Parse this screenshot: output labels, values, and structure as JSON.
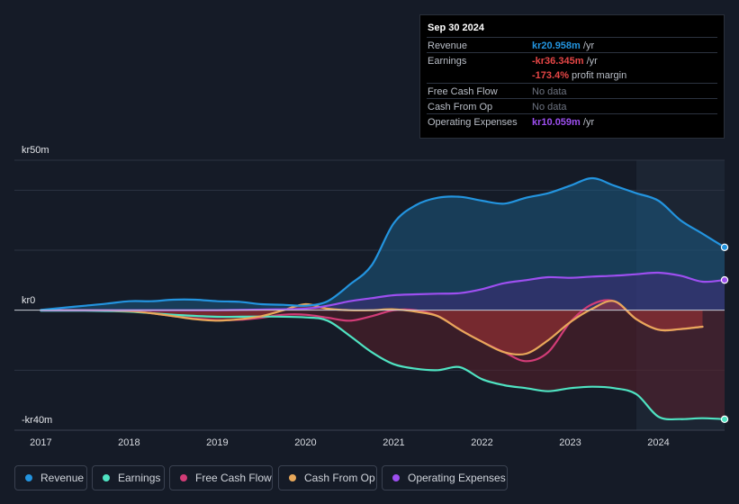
{
  "tooltip": {
    "date": "Sep 30 2024",
    "rows": [
      {
        "label": "Revenue",
        "value": "kr20.958m",
        "unit": "/yr"
      },
      {
        "label": "Earnings",
        "value": "-kr36.345m",
        "unit": "/yr"
      },
      {
        "label": "",
        "value": "-173.4%",
        "unit": "profit margin"
      },
      {
        "label": "Free Cash Flow",
        "value": "No data",
        "unit": ""
      },
      {
        "label": "Cash From Op",
        "value": "No data",
        "unit": ""
      },
      {
        "label": "Operating Expenses",
        "value": "kr10.059m",
        "unit": "/yr"
      }
    ]
  },
  "colors": {
    "background": "#151b27",
    "revenue": "#2394df",
    "earnings": "#4fe3c2",
    "free_cash_flow": "#d23c77",
    "cash_from_op": "#e8a85a",
    "operating_expenses": "#9d4ff0",
    "negative": "#e64646"
  },
  "legend": [
    {
      "key": "revenue",
      "label": "Revenue",
      "color": "#2394df"
    },
    {
      "key": "earnings",
      "label": "Earnings",
      "color": "#4fe3c2"
    },
    {
      "key": "free_cash_flow",
      "label": "Free Cash Flow",
      "color": "#d23c77"
    },
    {
      "key": "cash_from_op",
      "label": "Cash From Op",
      "color": "#e8a85a"
    },
    {
      "key": "operating_expenses",
      "label": "Operating Expenses",
      "color": "#9d4ff0"
    }
  ],
  "chart_data": {
    "type": "area",
    "title": "",
    "xlabel": "",
    "ylabel": "",
    "currency": "kr",
    "y_axis_labels": [
      "kr50m",
      "kr0",
      "-kr40m"
    ],
    "ylim": [
      -40,
      50
    ],
    "xlim": [
      2016.7,
      2024.75
    ],
    "x_ticks": [
      2017,
      2018,
      2019,
      2020,
      2021,
      2022,
      2023,
      2024
    ],
    "x_tick_labels": [
      "2017",
      "2018",
      "2019",
      "2020",
      "2021",
      "2022",
      "2023",
      "2024"
    ],
    "highlight_start": 2023.75,
    "series": [
      {
        "name": "Revenue",
        "key": "revenue",
        "unit": "kr m",
        "x": [
          2017.0,
          2017.25,
          2017.5,
          2017.75,
          2018.0,
          2018.25,
          2018.5,
          2018.75,
          2019.0,
          2019.25,
          2019.5,
          2019.75,
          2020.0,
          2020.25,
          2020.5,
          2020.75,
          2021.0,
          2021.25,
          2021.5,
          2021.75,
          2022.0,
          2022.25,
          2022.5,
          2022.75,
          2023.0,
          2023.25,
          2023.5,
          2023.75,
          2024.0,
          2024.25,
          2024.5,
          2024.75
        ],
        "y": [
          0.1,
          0.8,
          1.5,
          2.2,
          3.0,
          3.0,
          3.5,
          3.5,
          3.0,
          2.8,
          2.0,
          1.8,
          1.5,
          3.0,
          8.5,
          15.0,
          29.0,
          35.0,
          37.5,
          37.8,
          36.5,
          35.5,
          37.5,
          39.0,
          41.5,
          44.0,
          41.5,
          39.0,
          36.5,
          30.0,
          25.5,
          20.958
        ]
      },
      {
        "name": "Earnings",
        "key": "earnings",
        "unit": "kr m",
        "x": [
          2017.0,
          2017.5,
          2018.0,
          2018.5,
          2019.0,
          2019.5,
          2020.0,
          2020.25,
          2020.5,
          2020.75,
          2021.0,
          2021.25,
          2021.5,
          2021.75,
          2022.0,
          2022.25,
          2022.5,
          2022.75,
          2023.0,
          2023.25,
          2023.5,
          2023.75,
          2024.0,
          2024.25,
          2024.5,
          2024.75
        ],
        "y": [
          -0.2,
          -0.2,
          -0.5,
          -1.5,
          -2.2,
          -2.1,
          -2.4,
          -3.5,
          -8.5,
          -14.0,
          -18.0,
          -19.5,
          -20.0,
          -19.0,
          -23.0,
          -25.0,
          -26.0,
          -27.0,
          -26.0,
          -25.5,
          -26.0,
          -28.0,
          -35.5,
          -36.3,
          -36.0,
          -36.345
        ]
      },
      {
        "name": "Free Cash Flow",
        "key": "free_cash_flow",
        "unit": "kr m",
        "x": [
          2017.0,
          2017.5,
          2018.0,
          2018.25,
          2018.5,
          2018.75,
          2019.0,
          2019.25,
          2019.5,
          2019.75,
          2020.0,
          2020.25,
          2020.5,
          2020.75,
          2021.0,
          2021.25,
          2021.5,
          2021.75,
          2022.0,
          2022.25,
          2022.5,
          2022.75,
          2023.0,
          2023.25,
          2023.5,
          2023.75,
          2024.0,
          2024.25,
          2024.5
        ],
        "y": [
          0.0,
          0.0,
          -0.3,
          -1.0,
          -2.0,
          -2.8,
          -3.3,
          -3.2,
          -2.5,
          -1.5,
          -1.5,
          -2.5,
          -3.5,
          -2.0,
          0.0,
          0.0,
          -2.0,
          -6.5,
          -10.5,
          -14.0,
          -17.0,
          -14.0,
          -4.0,
          2.0,
          3.0,
          -3.0,
          -6.5,
          -6.3,
          -5.5
        ]
      },
      {
        "name": "Cash From Op",
        "key": "cash_from_op",
        "unit": "kr m",
        "x": [
          2017.0,
          2017.5,
          2018.0,
          2018.25,
          2018.5,
          2018.75,
          2019.0,
          2019.25,
          2019.5,
          2019.75,
          2020.0,
          2020.25,
          2020.5,
          2020.75,
          2021.0,
          2021.25,
          2021.5,
          2021.75,
          2022.0,
          2022.25,
          2022.5,
          2022.75,
          2023.0,
          2023.25,
          2023.5,
          2023.75,
          2024.0,
          2024.25,
          2024.5
        ],
        "y": [
          0.0,
          0.0,
          -0.3,
          -1.0,
          -2.0,
          -3.0,
          -3.5,
          -3.0,
          -2.0,
          0.0,
          2.0,
          0.5,
          0.0,
          0.0,
          0.3,
          -0.5,
          -2.0,
          -6.5,
          -10.5,
          -14.0,
          -14.5,
          -10.0,
          -4.0,
          0.5,
          3.0,
          -3.0,
          -6.5,
          -6.3,
          -5.5
        ]
      },
      {
        "name": "Operating Expenses",
        "key": "operating_expenses",
        "unit": "kr m",
        "x": [
          2017.0,
          2017.5,
          2018.0,
          2018.5,
          2019.0,
          2019.5,
          2020.0,
          2020.25,
          2020.5,
          2020.75,
          2021.0,
          2021.25,
          2021.5,
          2021.75,
          2022.0,
          2022.25,
          2022.5,
          2022.75,
          2023.0,
          2023.25,
          2023.5,
          2023.75,
          2024.0,
          2024.25,
          2024.5,
          2024.75
        ],
        "y": [
          0.0,
          0.0,
          0.0,
          0.0,
          0.0,
          0.2,
          0.5,
          1.5,
          3.0,
          4.0,
          5.0,
          5.3,
          5.5,
          5.7,
          7.0,
          9.0,
          10.0,
          11.0,
          10.8,
          11.2,
          11.5,
          12.0,
          12.5,
          11.5,
          9.5,
          10.059
        ]
      }
    ]
  }
}
